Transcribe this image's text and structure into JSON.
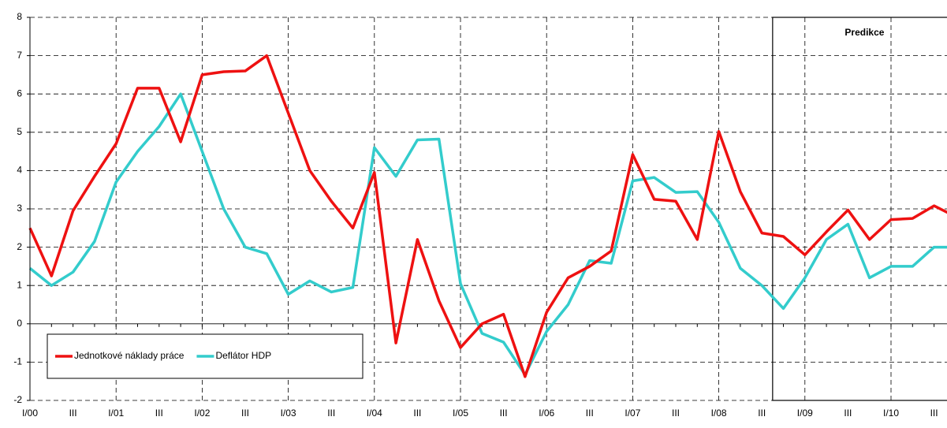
{
  "chart_data": {
    "type": "line",
    "categories": [
      "I/00",
      null,
      "III",
      null,
      "I/01",
      null,
      "III",
      null,
      "I/02",
      null,
      "III",
      null,
      "I/03",
      null,
      "III",
      null,
      "I/04",
      null,
      "III",
      null,
      "I/05",
      null,
      "III",
      null,
      "I/06",
      null,
      "III",
      null,
      "I/07",
      null,
      "III",
      null,
      "I/08",
      null,
      "III",
      null,
      "I/09",
      null,
      "III",
      null,
      "I/10",
      null,
      "III",
      null
    ],
    "series": [
      {
        "name": "Jednotkové náklady práce",
        "color": "#ee1111",
        "values": [
          2.5,
          1.25,
          2.95,
          3.85,
          4.7,
          6.15,
          6.15,
          4.75,
          6.5,
          6.58,
          6.6,
          7.0,
          5.5,
          4.0,
          3.2,
          2.5,
          3.95,
          -0.5,
          2.2,
          0.6,
          -0.62,
          0.0,
          0.25,
          -1.38,
          0.3,
          1.2,
          1.5,
          1.9,
          4.42,
          3.25,
          3.2,
          2.2,
          5.02,
          3.45,
          2.37,
          2.28,
          1.8,
          2.4,
          2.97,
          2.2,
          2.72,
          2.75,
          3.08,
          2.8
        ]
      },
      {
        "name": "Deflátor HDP",
        "color": "#33cccc",
        "values": [
          1.45,
          1.0,
          1.35,
          2.15,
          3.7,
          4.5,
          5.15,
          6.0,
          4.5,
          3.0,
          2.0,
          1.83,
          0.77,
          1.12,
          0.83,
          0.95,
          4.6,
          3.85,
          4.8,
          4.82,
          1.05,
          -0.25,
          -0.48,
          -1.33,
          -0.2,
          0.5,
          1.65,
          1.58,
          3.73,
          3.82,
          3.43,
          3.45,
          2.65,
          1.45,
          1.0,
          0.4,
          1.2,
          2.2,
          2.6,
          1.2,
          1.5,
          1.5,
          2.0,
          2.0
        ]
      }
    ],
    "ylim": [
      -2,
      8
    ],
    "yticks": [
      -2,
      -1,
      0,
      1,
      2,
      3,
      4,
      5,
      6,
      7,
      8
    ],
    "grid": true,
    "legend": "lower left",
    "annotation": {
      "text": "Predikce",
      "x_start": 34.5
    }
  }
}
